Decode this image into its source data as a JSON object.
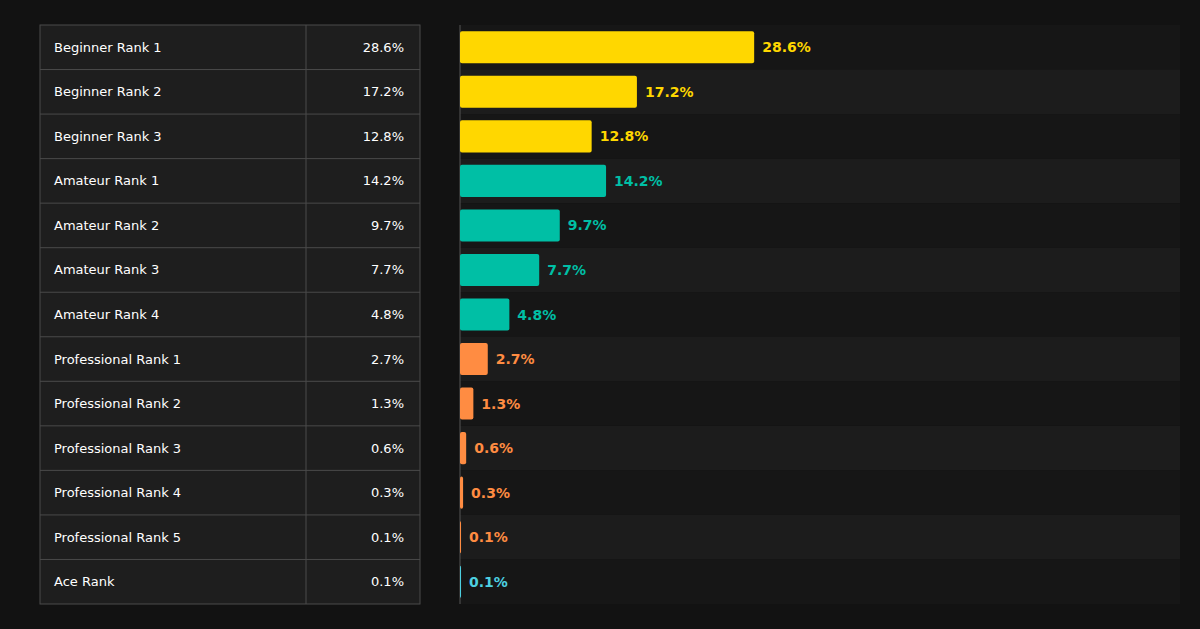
{
  "chart_data": {
    "type": "bar",
    "orientation": "horizontal",
    "categories": [
      "Beginner Rank 1",
      "Beginner Rank 2",
      "Beginner Rank 3",
      "Amateur Rank 1",
      "Amateur Rank 2",
      "Amateur Rank 3",
      "Amateur Rank 4",
      "Professional Rank 1",
      "Professional Rank 2",
      "Professional Rank 3",
      "Professional Rank 4",
      "Professional Rank 5",
      "Ace Rank"
    ],
    "values": [
      28.6,
      17.2,
      12.8,
      14.2,
      9.7,
      7.7,
      4.8,
      2.7,
      1.3,
      0.6,
      0.3,
      0.1,
      0.1
    ],
    "value_labels": [
      "28.6%",
      "17.2%",
      "12.8%",
      "14.2%",
      "9.7%",
      "7.7%",
      "4.8%",
      "2.7%",
      "1.3%",
      "0.6%",
      "0.3%",
      "0.1%",
      "0.1%"
    ],
    "colors": [
      "#FFD700",
      "#FFD700",
      "#FFD700",
      "#00BFA5",
      "#00BFA5",
      "#00BFA5",
      "#00BFA5",
      "#FF8C42",
      "#FF8C42",
      "#FF8C42",
      "#FF8C42",
      "#FF8C42",
      "#4DD0E1"
    ],
    "xlim": [
      0,
      70
    ],
    "data_labels": true,
    "tick_labels": false,
    "grid": false
  }
}
